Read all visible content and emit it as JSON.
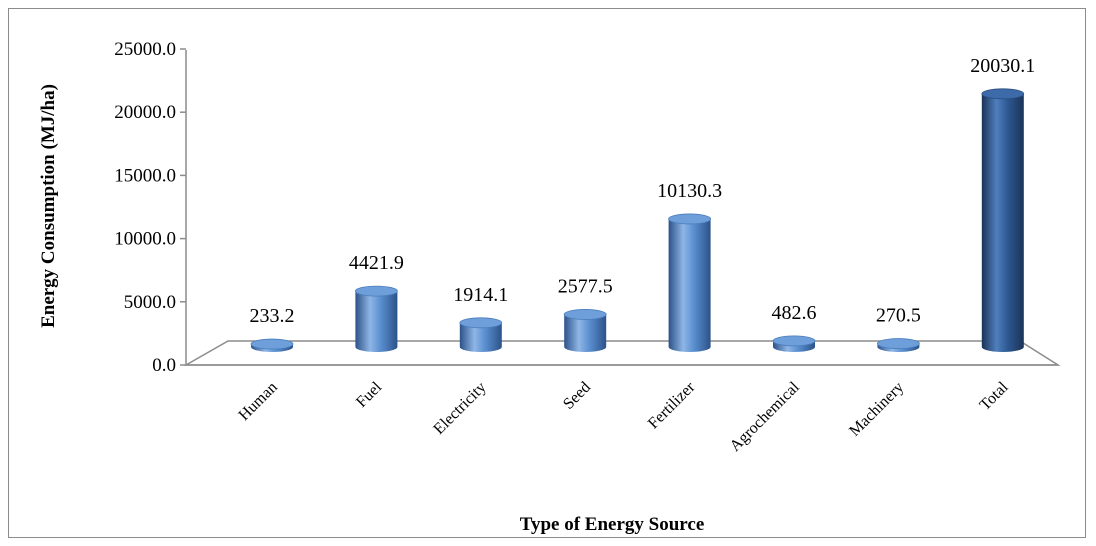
{
  "chart_data": {
    "type": "bar",
    "title": "",
    "xlabel": "Type of Energy Source",
    "ylabel": "Energy Consumption (MJ/ha)",
    "ylim": [
      0,
      25000
    ],
    "yticks": [
      "0.0",
      "5000.0",
      "10000.0",
      "15000.0",
      "20000.0",
      "25000.0"
    ],
    "ytick_values": [
      0,
      5000,
      10000,
      15000,
      20000,
      25000
    ],
    "categories": [
      "Human",
      "Fuel",
      "Electricity",
      "Seed",
      "Fertilizer",
      "Agrochemical",
      "Machinery",
      "Total"
    ],
    "values": [
      233.2,
      4421.9,
      1914.1,
      2577.5,
      10130.3,
      482.6,
      270.5,
      20030.1
    ],
    "data_labels": [
      "233.2",
      "4421.9",
      "1914.1",
      "2577.5",
      "10130.3",
      "482.6",
      "270.5",
      "20030.1"
    ],
    "colors": {
      "bar": "#4a7ebb",
      "bar_light": "#9cc0ea",
      "bar_dark": "#2c5289",
      "total_bar_dark": "#1f3c66",
      "axis": "#8c8c8c"
    },
    "grid": false,
    "legend": "none",
    "style": "3d-cylinder"
  }
}
